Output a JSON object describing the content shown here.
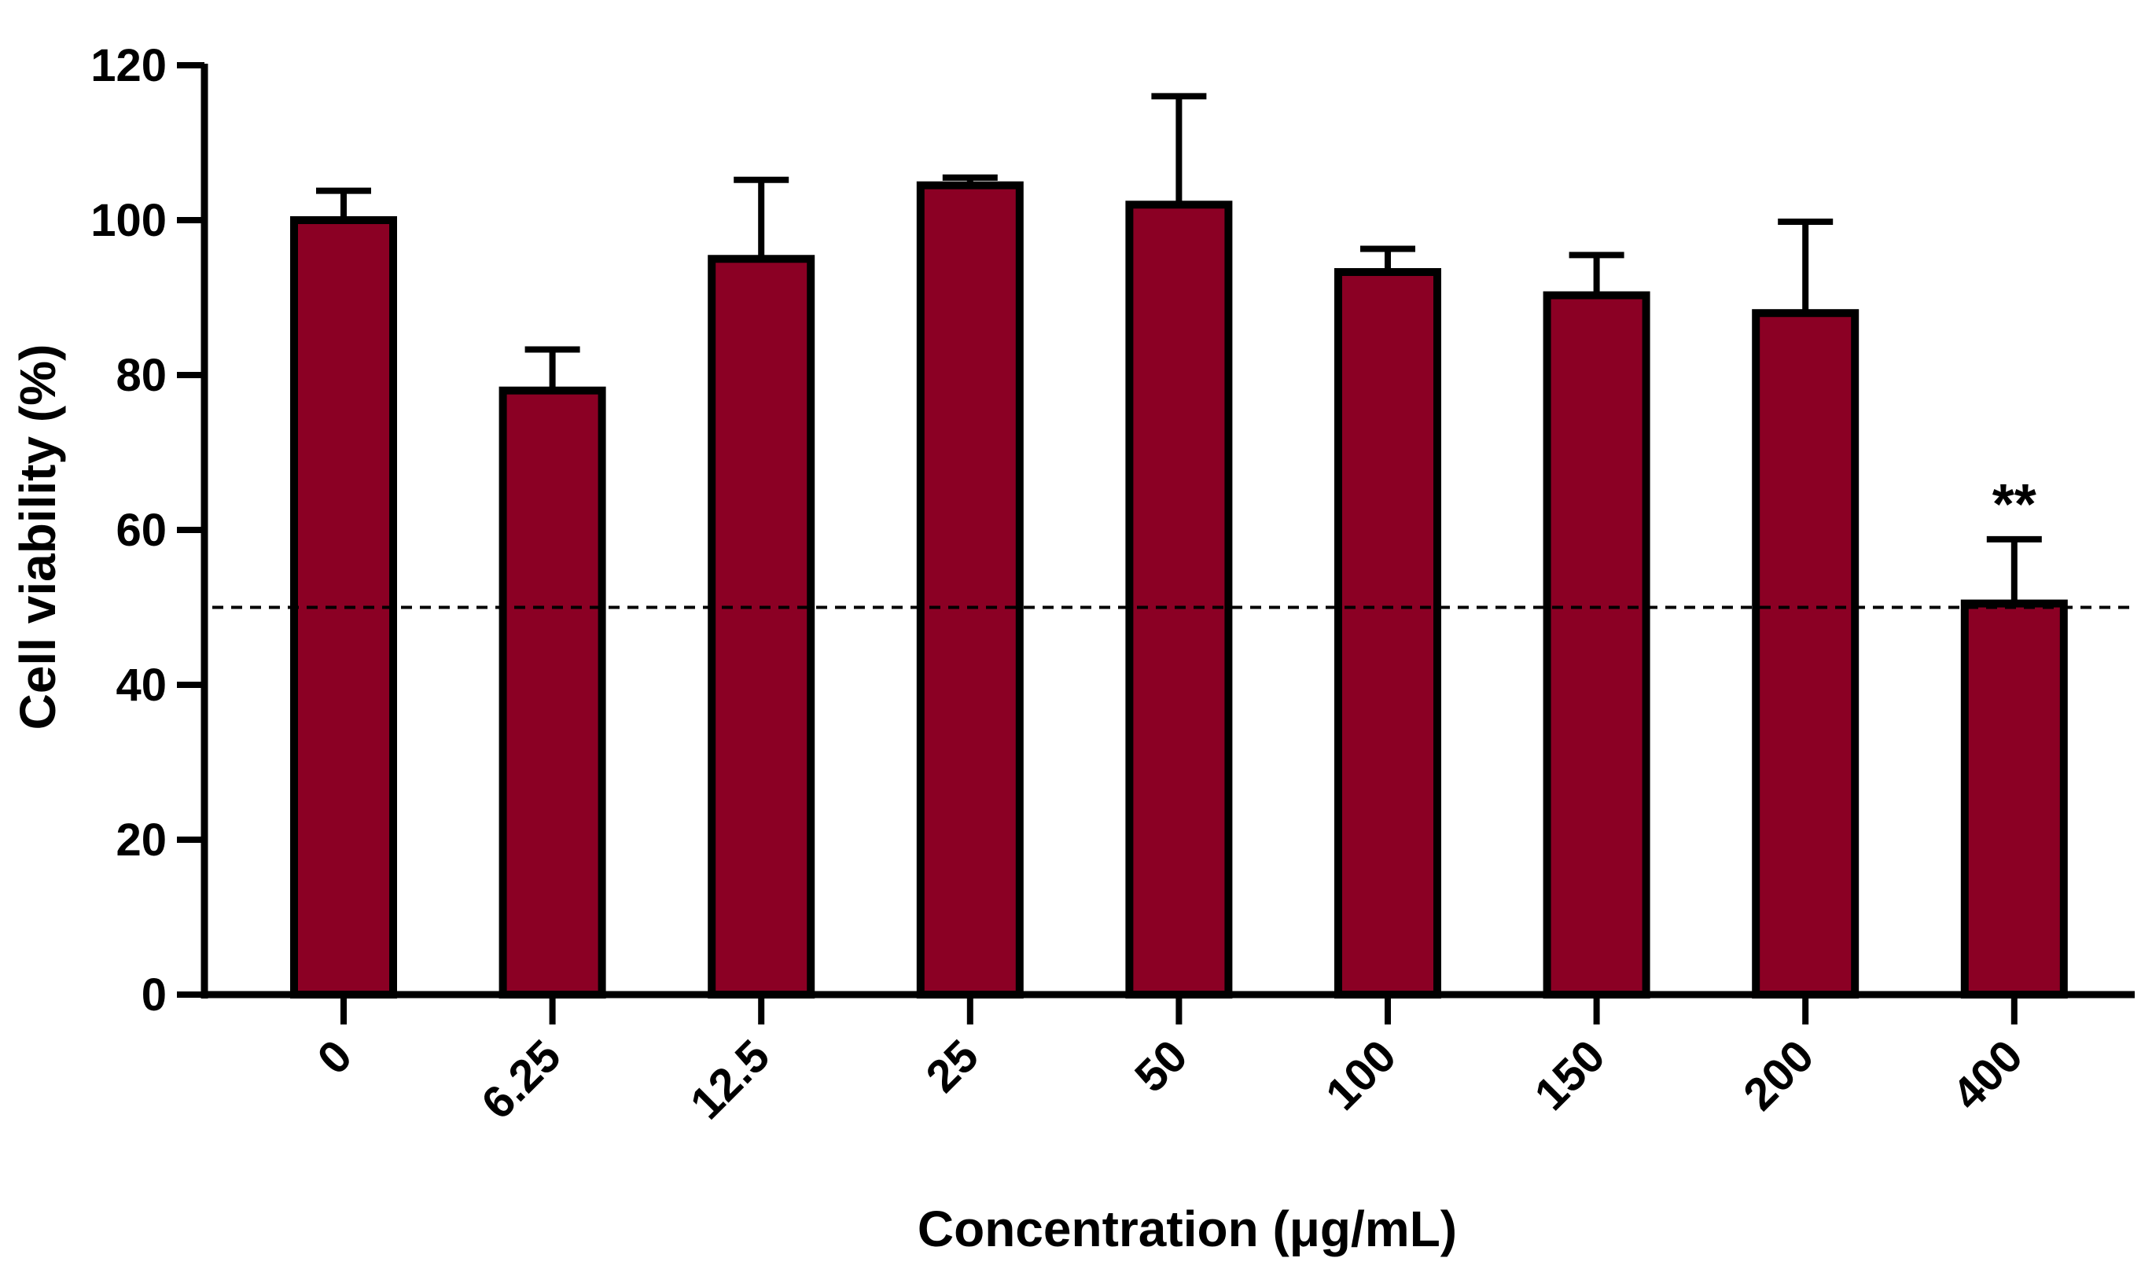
{
  "chart_data": {
    "type": "bar",
    "title": "",
    "xlabel": "Concentration (μg/mL)",
    "ylabel": "Cell viability (%)",
    "categories": [
      "0",
      "6.25",
      "12.5",
      "25",
      "50",
      "100",
      "150",
      "200",
      "400"
    ],
    "values": [
      100,
      78,
      95,
      104.5,
      102,
      93.3,
      90.3,
      88,
      50.5
    ],
    "errors": [
      3.8,
      5.3,
      10.2,
      1,
      14,
      3,
      5.2,
      11.8,
      8.3
    ],
    "ylim": [
      0,
      120
    ],
    "yticks": [
      "0",
      "20",
      "40",
      "60",
      "80",
      "100",
      "120"
    ],
    "reference_line": {
      "value": 50,
      "style": "dashed"
    },
    "annotations": [
      {
        "category": "400",
        "text": "**"
      }
    ],
    "grid": false,
    "colors": {
      "bar": "#8B0024",
      "edge": "#000000"
    }
  }
}
